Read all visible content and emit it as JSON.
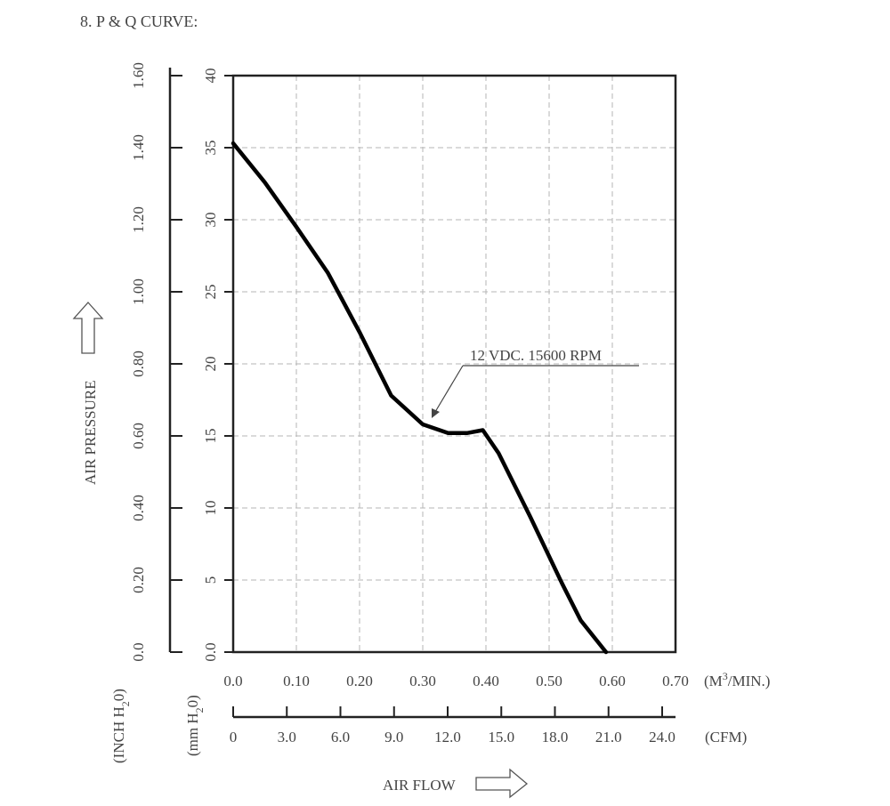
{
  "section_title": "8. P & Q CURVE:",
  "chart_data": {
    "type": "line",
    "x_m3min": [
      0.0,
      0.05,
      0.1,
      0.15,
      0.2,
      0.25,
      0.3,
      0.34,
      0.37,
      0.395,
      0.42,
      0.47,
      0.52,
      0.55,
      0.59
    ],
    "y_mmh2o": [
      35.3,
      32.6,
      29.5,
      26.3,
      22.2,
      17.8,
      15.8,
      15.2,
      15.2,
      15.4,
      13.8,
      9.4,
      4.8,
      2.2,
      0.0
    ],
    "series": [
      {
        "name": "12 VDC. 15600 RPM"
      }
    ],
    "xlim": [
      0,
      0.7
    ],
    "ylim": [
      0,
      40
    ],
    "grid": true,
    "x_ticks_m3min": [
      "0.0",
      "0.10",
      "0.20",
      "0.30",
      "0.40",
      "0.50",
      "0.60",
      "0.70"
    ],
    "x_unit_m3min_prefix": "(M",
    "x_unit_m3min_sup": "3",
    "x_unit_m3min_suffix": "/MIN.)",
    "x_ticks_cfm": [
      "0",
      "3.0",
      "6.0",
      "9.0",
      "12.0",
      "15.0",
      "18.0",
      "21.0",
      "24.0"
    ],
    "x_unit_cfm": "(CFM)",
    "y_ticks_mmh2o": [
      "0.0",
      "5",
      "10",
      "15",
      "20",
      "25",
      "30",
      "35",
      "40"
    ],
    "y_unit_mmh2o_prefix": "(mm H",
    "y_unit_mmh2o_sub": "2",
    "y_unit_mmh2o_suffix": "0)",
    "y_ticks_inchh2o": [
      "0.0",
      "0.20",
      "0.40",
      "0.60",
      "0.80",
      "1.00",
      "1.20",
      "1.40",
      "1.60"
    ],
    "y_unit_inchh2o_prefix": "(INCH H",
    "y_unit_inchh2o_sub": "2",
    "y_unit_inchh2o_suffix": "0)",
    "ylabel": "AIR PRESSURE",
    "xlabel": "AIR FLOW"
  }
}
